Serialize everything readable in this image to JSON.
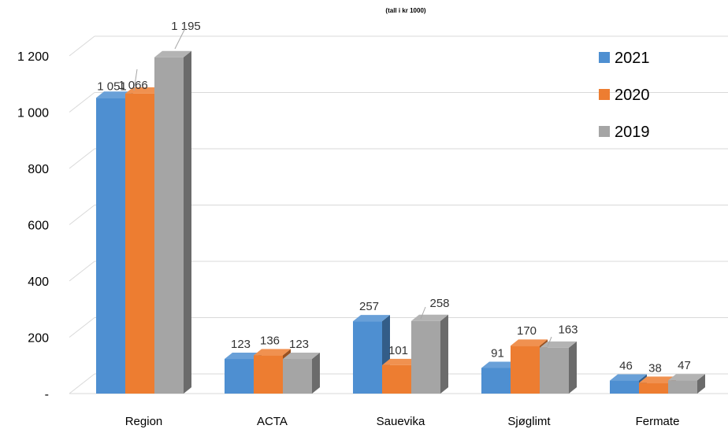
{
  "chart_data": {
    "type": "bar",
    "subtitle": "(tall i kr 1000)",
    "categories": [
      "Region",
      "ACTA",
      "Sauevika",
      "Sjøglimt",
      "Fermate"
    ],
    "series": [
      {
        "name": "2021",
        "color": "#4e8fd1",
        "values": [
          1051,
          123,
          257,
          91,
          46
        ],
        "labels": [
          "1 051",
          "123",
          "257",
          "91",
          "46"
        ]
      },
      {
        "name": "2020",
        "color": "#ed7d31",
        "values": [
          1066,
          136,
          101,
          170,
          38
        ],
        "labels": [
          "1 066",
          "136",
          "101",
          "170",
          "38"
        ]
      },
      {
        "name": "2019",
        "color": "#a5a5a5",
        "values": [
          1195,
          123,
          258,
          163,
          47
        ],
        "labels": [
          "1 195",
          "123",
          "258",
          "163",
          "47"
        ]
      }
    ],
    "yticks": [
      {
        "value": 0,
        "label": "-"
      },
      {
        "value": 200,
        "label": "200"
      },
      {
        "value": 400,
        "label": "400"
      },
      {
        "value": 600,
        "label": "600"
      },
      {
        "value": 800,
        "label": "800"
      },
      {
        "value": 1000,
        "label": "1 000"
      },
      {
        "value": 1200,
        "label": "1 200"
      }
    ],
    "ylim": [
      0,
      1200
    ],
    "grid": true,
    "legend_position": "top-right",
    "style": "3d-clustered-column"
  }
}
